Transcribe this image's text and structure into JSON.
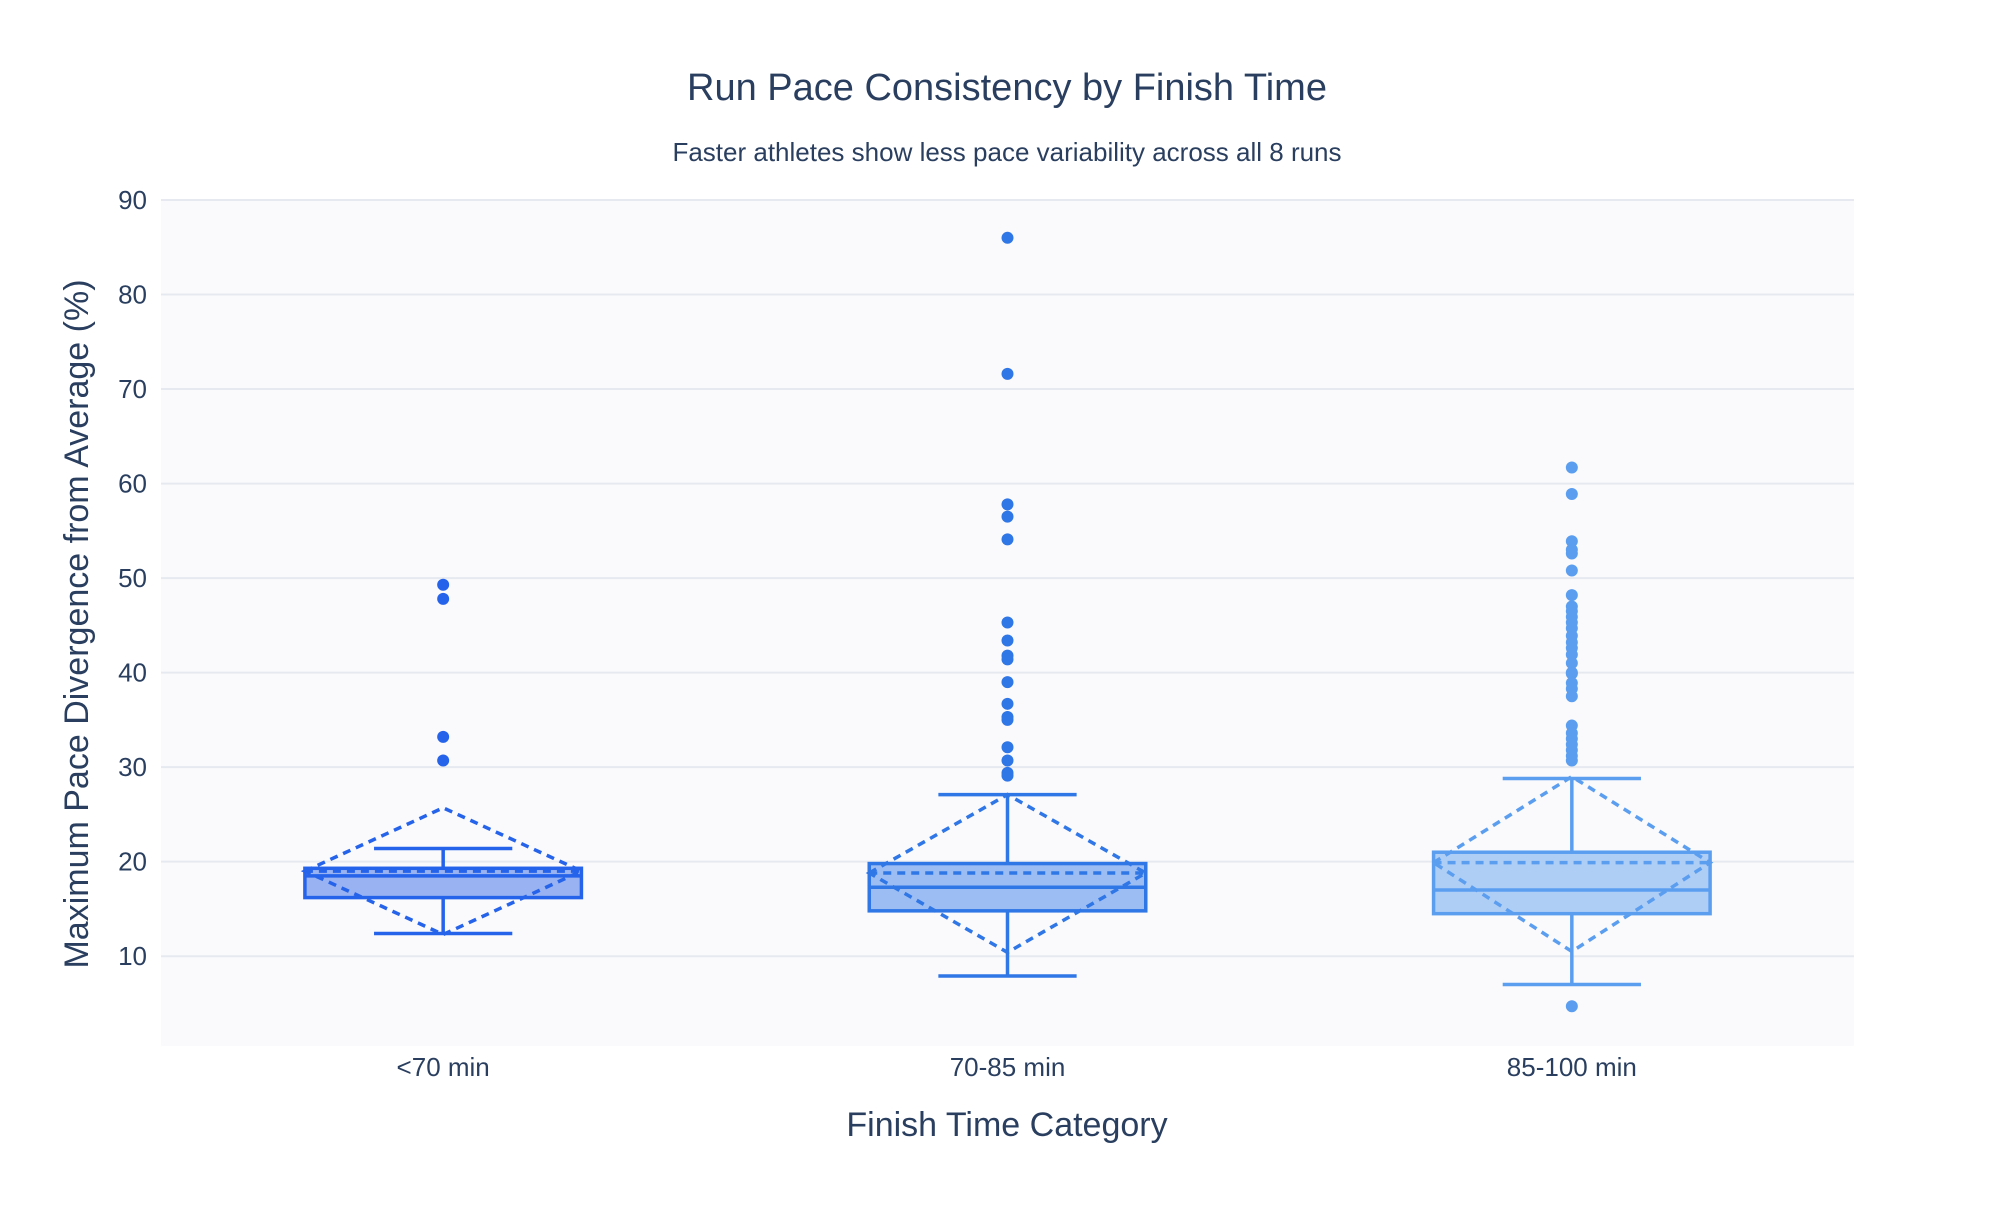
{
  "chart_data": {
    "type": "box",
    "title": "Run Pace Consistency by Finish Time",
    "subtitle": "Faster athletes show less pace variability across all 8 runs",
    "xlabel": "Finish Time Category",
    "ylabel": "Maximum Pace Divergence from Average (%)",
    "categories": [
      "<70 min",
      "70-85 min",
      "85-100 min"
    ],
    "y_ticks": [
      10,
      20,
      30,
      40,
      50,
      60,
      70,
      80,
      90
    ],
    "ylim": [
      0.5,
      90
    ],
    "grid": true,
    "legend": "none",
    "boxmean": "sd",
    "series": [
      {
        "category": "<70 min",
        "color": "#2563eb",
        "fill": "#93aef0",
        "q1": 16.2,
        "median": 18.5,
        "q3": 19.3,
        "whisker_low": 12.4,
        "whisker_high": 21.4,
        "mean": 19.0,
        "mean_minus_sd": 12.3,
        "mean_plus_sd": 25.7,
        "outliers": [
          49.3,
          47.8,
          33.2,
          30.7
        ]
      },
      {
        "category": "70-85 min",
        "color": "#2f76e6",
        "fill": "#97b9f2",
        "q1": 14.8,
        "median": 17.3,
        "q3": 19.8,
        "whisker_low": 7.9,
        "whisker_high": 27.1,
        "mean": 18.8,
        "mean_minus_sd": 10.4,
        "mean_plus_sd": 27.1,
        "outliers": [
          86.0,
          71.6,
          57.8,
          56.5,
          54.1,
          45.3,
          43.4,
          41.8,
          41.4,
          39.0,
          36.7,
          35.3,
          35.0,
          32.1,
          30.7,
          29.4,
          29.1
        ]
      },
      {
        "category": "85-100 min",
        "color": "#5b9ef0",
        "fill": "#abcbf6",
        "q1": 14.5,
        "median": 17.0,
        "q3": 21.0,
        "whisker_low": 7.0,
        "whisker_high": 28.8,
        "mean": 19.9,
        "mean_minus_sd": 10.5,
        "mean_plus_sd": 29.0,
        "outliers": [
          61.7,
          58.9,
          53.9,
          53.0,
          52.6,
          50.8,
          48.2,
          47.0,
          46.5,
          45.9,
          45.3,
          44.7,
          43.9,
          43.2,
          42.6,
          41.9,
          41.0,
          40.0,
          39.9,
          38.9,
          38.3,
          37.5,
          34.4,
          33.6,
          33.0,
          32.4,
          31.8,
          31.2,
          30.7,
          4.7
        ]
      }
    ]
  }
}
